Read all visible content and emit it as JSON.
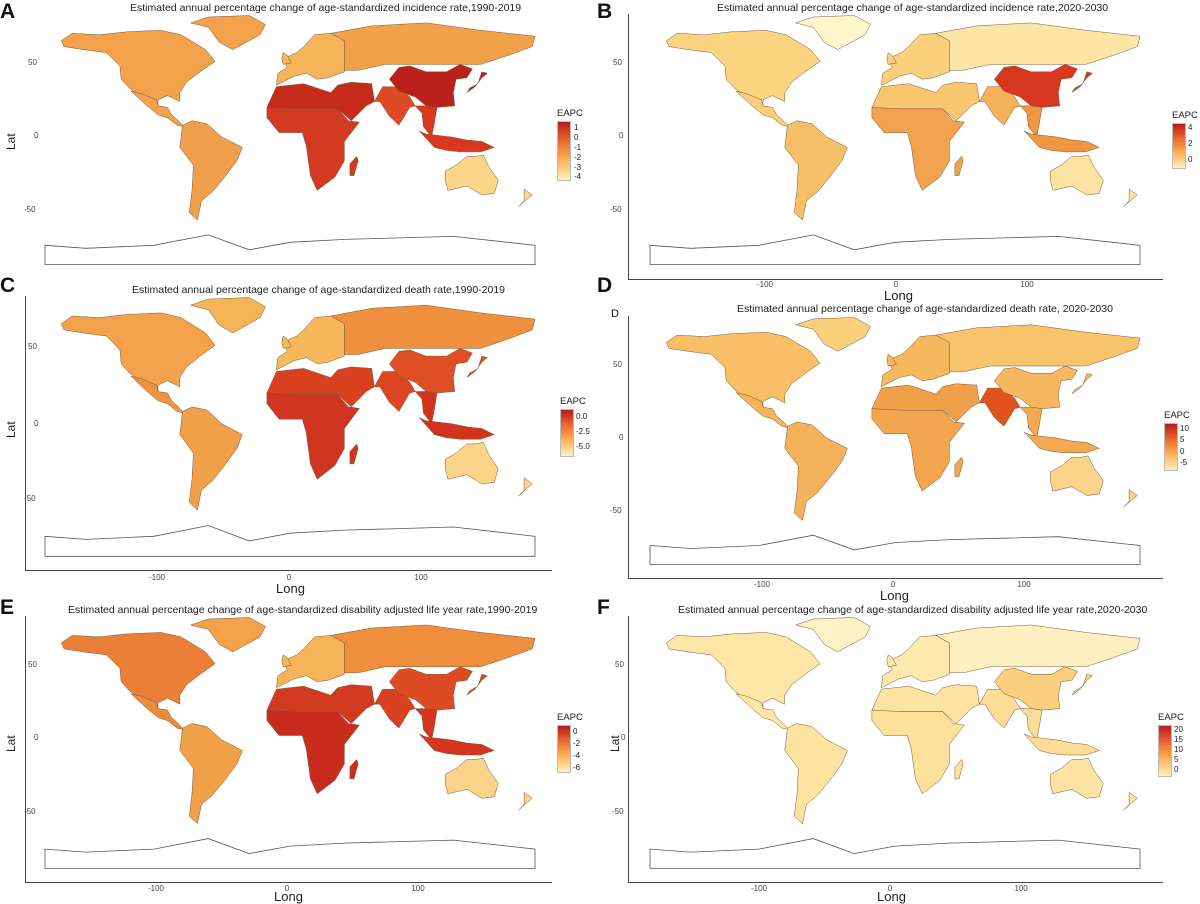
{
  "panels": [
    {
      "id": "A",
      "letter": "A",
      "letter_small": false,
      "title": "Estimated annual percentage change of age-standardized incidence rate,1990-2019",
      "ylabel": "Lat",
      "xlabel": "",
      "yticks": [
        "50",
        "0",
        "-50"
      ],
      "xticks": [],
      "legend": {
        "title": "EAPC",
        "ticks": [
          "1",
          "0",
          "-1",
          "-2",
          "-3",
          "-4"
        ]
      },
      "colors": {
        "northamerica": "#f3a14a",
        "greenland": "#f3a14a",
        "latam": "#f4a24c",
        "southamerica": "#f0a04c",
        "europe": "#f6b458",
        "russia": "#f3a04a",
        "mena": "#c62b1a",
        "africa": "#d23a22",
        "southasia": "#dd4a26",
        "china": "#b9211a",
        "sea": "#d8381f",
        "australia": "#fbd68a",
        "antarctica": "#ffffff"
      }
    },
    {
      "id": "B",
      "letter": "B",
      "letter_small": false,
      "title": "Estimated annual percentage change of age-standardized incidence rate,2020-2030",
      "ylabel": "",
      "xlabel": "Long",
      "yticks": [
        "50",
        "0",
        "-50"
      ],
      "xticks": [
        "-100",
        "0",
        "100"
      ],
      "legend": {
        "title": "EAPC",
        "ticks": [
          "4",
          "2",
          "0"
        ]
      },
      "colors": {
        "northamerica": "#fbd47f",
        "greenland": "#fff6cc",
        "latam": "#fbcf7a",
        "southamerica": "#f7c068",
        "europe": "#fbd07c",
        "russia": "#fde5a6",
        "mena": "#f8c66e",
        "africa": "#f2a24d",
        "southasia": "#f6b25b",
        "china": "#d6371e",
        "sea": "#f0963f",
        "australia": "#fde3a1",
        "antarctica": "#ffffff"
      }
    },
    {
      "id": "C",
      "letter": "C",
      "letter_small": false,
      "title": "Estimated annual percentage change of age-standardized death rate,1990-2019",
      "ylabel": "Lat",
      "xlabel": "Long",
      "yticks": [
        "50",
        "0",
        "-50"
      ],
      "xticks": [
        "-100",
        "0",
        "100"
      ],
      "legend": {
        "title": "EAPC",
        "ticks": [
          "0.0",
          "-2.5",
          "-5.0"
        ]
      },
      "colors": {
        "northamerica": "#f3a14a",
        "greenland": "#f6b458",
        "latam": "#ef933f",
        "southamerica": "#f1a04a",
        "europe": "#f7b85c",
        "russia": "#f0903e",
        "mena": "#d9401f",
        "africa": "#cf3520",
        "southasia": "#dc4522",
        "china": "#e04e25",
        "sea": "#d2331d",
        "australia": "#fbd48a",
        "antarctica": "#ffffff"
      }
    },
    {
      "id": "D",
      "letter": "D",
      "letter_small": false,
      "sub_letter": "D",
      "title": "Estimated annual percentage change of age-standardized death rate, 2020-2030",
      "ylabel": "",
      "xlabel": "Long",
      "yticks": [
        "50",
        "0",
        "-50"
      ],
      "xticks": [
        "-100",
        "0",
        "100"
      ],
      "legend": {
        "title": "EAPC",
        "ticks": [
          "10",
          "5",
          "0",
          "-5"
        ]
      },
      "colors": {
        "northamerica": "#f8bf66",
        "greenland": "#fbd07c",
        "latam": "#f6b45a",
        "southamerica": "#f5b05a",
        "europe": "#f6b85d",
        "russia": "#f8c36a",
        "mena": "#f0a04a",
        "africa": "#f2a44e",
        "southasia": "#e0521f",
        "china": "#f6b75e",
        "sea": "#f3a952",
        "australia": "#fbd48a",
        "antarctica": "#ffffff"
      }
    },
    {
      "id": "E",
      "letter": "E",
      "letter_small": false,
      "title": "Estimated annual percentage change of age-standardized disability adjusted life year rate,1990-2019",
      "ylabel": "Lat",
      "xlabel": "Long",
      "yticks": [
        "50",
        "0",
        "-50"
      ],
      "xticks": [
        "-100",
        "0",
        "100"
      ],
      "legend": {
        "title": "EAPC",
        "ticks": [
          "0",
          "-2",
          "-4",
          "-6"
        ]
      },
      "colors": {
        "northamerica": "#ec7f37",
        "greenland": "#f3a14a",
        "latam": "#ee8a3c",
        "southamerica": "#f1a04a",
        "europe": "#f6b458",
        "russia": "#ef8e3d",
        "mena": "#d23a20",
        "africa": "#c92c1c",
        "southasia": "#d8401f",
        "china": "#de4a24",
        "sea": "#d3351e",
        "australia": "#fbd48a",
        "antarctica": "#ffffff"
      }
    },
    {
      "id": "F",
      "letter": "F",
      "letter_small": false,
      "title": "Estimated annual percentage change of age-standardized disability adjusted life year rate,2020-2030",
      "ylabel": "Lat",
      "xlabel": "Long",
      "yticks": [
        "50",
        "0",
        "-50"
      ],
      "xticks": [
        "-100",
        "0",
        "100"
      ],
      "legend": {
        "title": "EAPC",
        "ticks": [
          "20",
          "15",
          "10",
          "5",
          "0"
        ]
      },
      "colors": {
        "northamerica": "#fde6a6",
        "greenland": "#fef1c4",
        "latam": "#fde6a6",
        "southamerica": "#fde2a0",
        "europe": "#fde9ae",
        "russia": "#fef0c0",
        "mena": "#fde3a0",
        "africa": "#fde09a",
        "southasia": "#fddc95",
        "china": "#fbcf80",
        "sea": "#fddd96",
        "australia": "#fde3a1",
        "antarctica": "#ffffff"
      }
    }
  ]
}
